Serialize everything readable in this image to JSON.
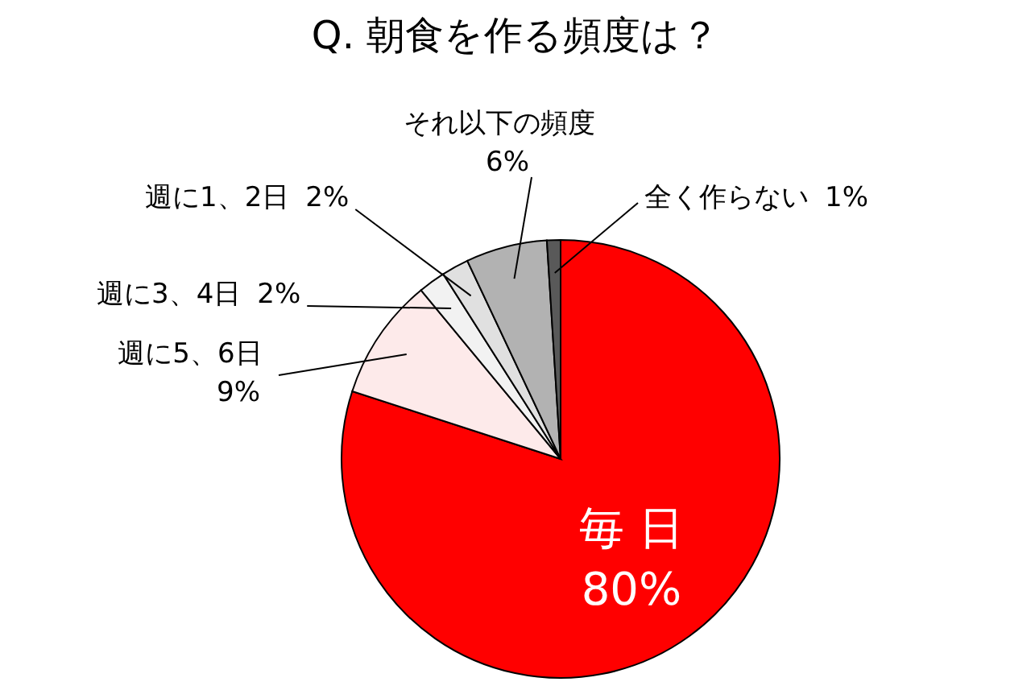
{
  "chart_data": {
    "type": "pie",
    "title": "Q. 朝食を作る頻度は？",
    "categories": [
      "毎日",
      "週に5、6日",
      "週に3、4日",
      "週に1、2日",
      "それ以下の頻度",
      "全く作らない"
    ],
    "values": [
      80,
      9,
      2,
      2,
      6,
      1
    ],
    "colors": [
      "#ff0000",
      "#fdeaea",
      "#f2f2f2",
      "#e0e0e0",
      "#b2b2b2",
      "#595959"
    ],
    "value_labels": [
      "80%",
      "9%",
      "2%",
      "2%",
      "6%",
      "1%"
    ]
  }
}
